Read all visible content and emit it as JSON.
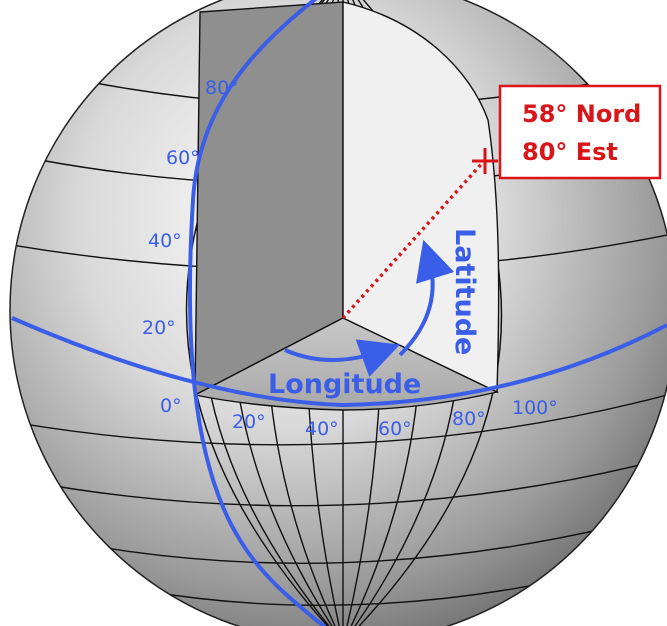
{
  "diagram": {
    "latitude_labels": [
      "80°",
      "60°",
      "40°",
      "20°",
      "0°"
    ],
    "longitude_labels": [
      "20°",
      "40°",
      "60°",
      "80°",
      "100°"
    ],
    "longitude_title": "Longitude",
    "latitude_title": "Latitude",
    "point": {
      "lat_label": "58° Nord",
      "lon_label": "80° Est"
    },
    "colors": {
      "accent_blue": "#3b5ee8",
      "point_red": "#d8161a",
      "cutaway_dark": "#8f8f8f",
      "cutaway_light": "#f0f0f0"
    }
  }
}
